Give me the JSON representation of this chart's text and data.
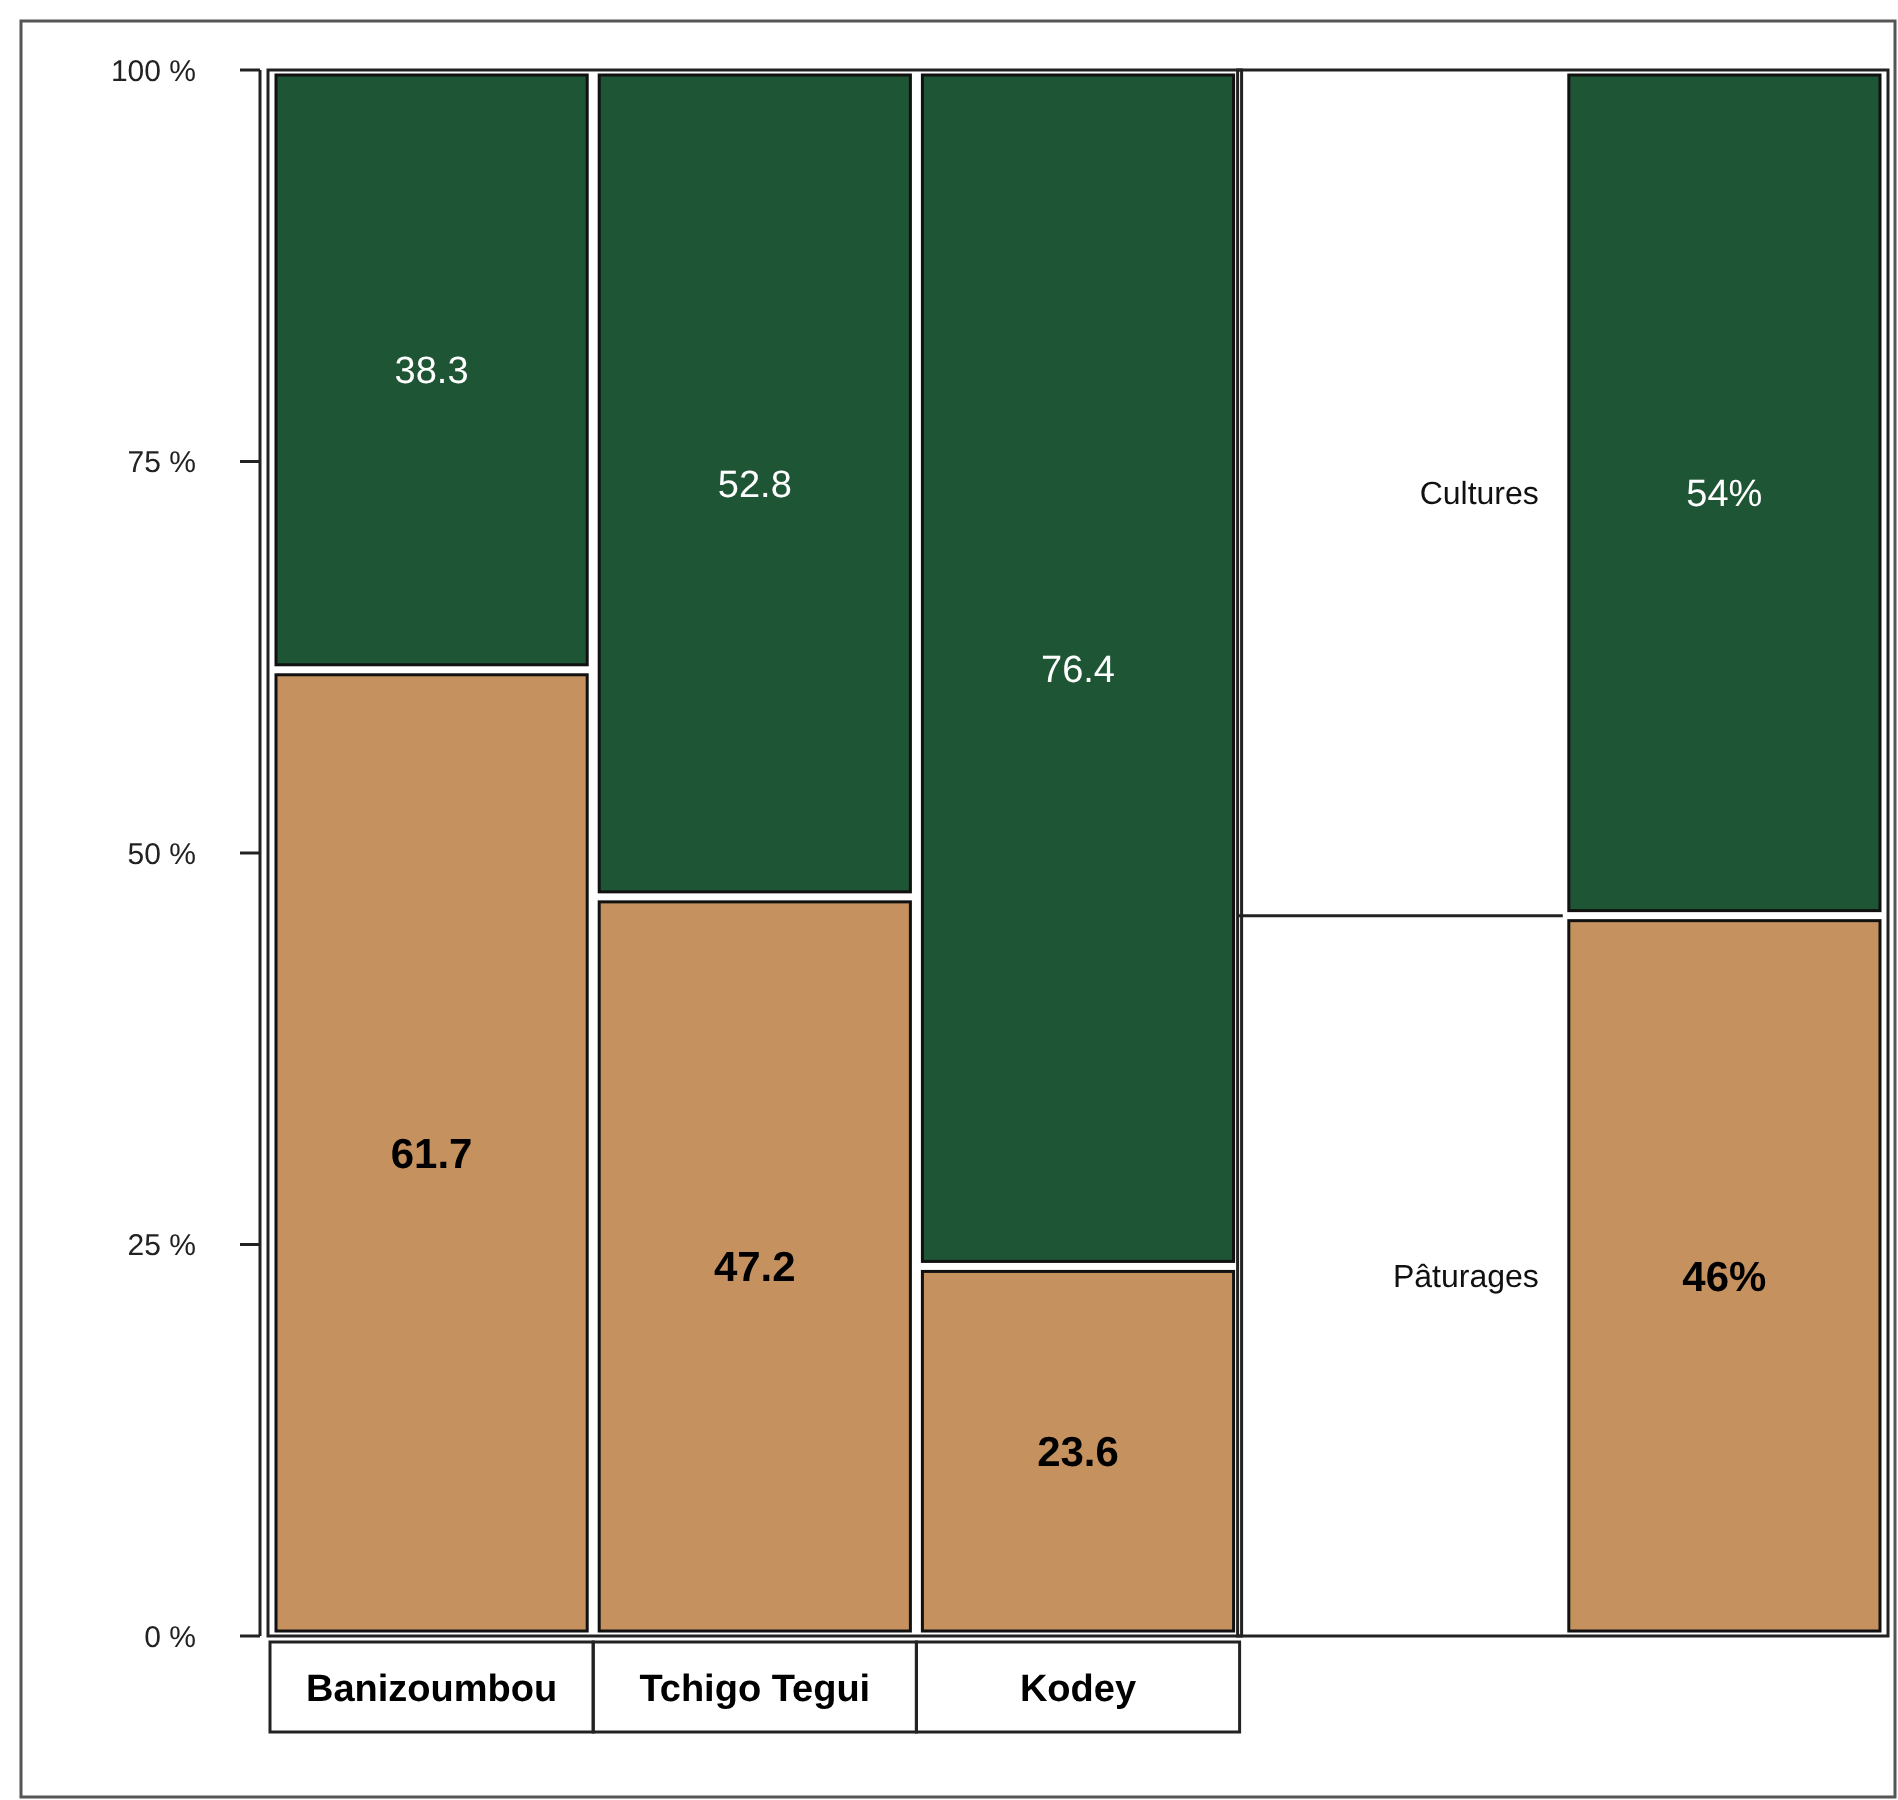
{
  "chart_data": {
    "type": "bar",
    "stacked": true,
    "categories": [
      "Banizoumbou",
      "Tchigo Tegui",
      "Kodey",
      null,
      null
    ],
    "series": [
      {
        "name": "Pâturages",
        "color": "#c4915f",
        "values": [
          61.7,
          47.2,
          23.6,
          null,
          46
        ],
        "value_labels": [
          "61.7",
          "47.2",
          "23.6",
          null,
          "46%"
        ]
      },
      {
        "name": "Cultures",
        "color": "#1e5535",
        "values": [
          38.3,
          52.8,
          76.4,
          null,
          54
        ],
        "value_labels": [
          "38.3",
          "52.8",
          "76.4",
          null,
          "54%"
        ]
      }
    ],
    "ylim": [
      0,
      100
    ],
    "yticks": [
      {
        "value": 0,
        "label": "0 %"
      },
      {
        "value": 25,
        "label": "25 %"
      },
      {
        "value": 50,
        "label": "50 %"
      },
      {
        "value": 75,
        "label": "75 %"
      },
      {
        "value": 100,
        "label": "100 %"
      }
    ],
    "legend": "right"
  }
}
